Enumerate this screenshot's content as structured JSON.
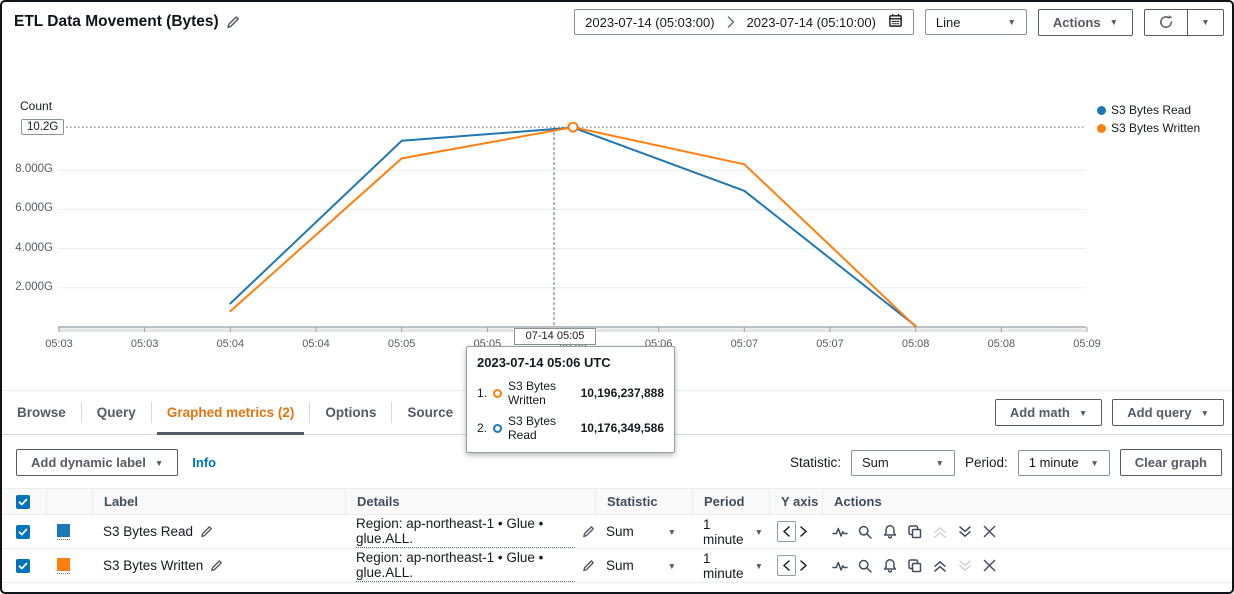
{
  "header": {
    "title": "ETL Data Movement (Bytes)",
    "date_range": {
      "start": "2023-07-14 (05:03:00)",
      "end": "2023-07-14 (05:10:00)"
    },
    "chart_type_select": "Line",
    "actions_button": "Actions"
  },
  "chart_data": {
    "type": "line",
    "title": "ETL Data Movement (Bytes)",
    "ylabel": "Count",
    "xlabel": "",
    "x_range": [
      "05:03",
      "05:09"
    ],
    "x_tick_labels": [
      "05:03",
      "05:03",
      "05:04",
      "05:04",
      "05:05",
      "05:05",
      "05:06",
      "05:06",
      "05:07",
      "05:07",
      "05:08",
      "05:08",
      "05:09"
    ],
    "y_tick_labels": [
      "8.000G",
      "6.000G",
      "4.000G",
      "2.000G"
    ],
    "y_grid_values_g": [
      8,
      6,
      4,
      2
    ],
    "y_max_g": 10.2,
    "y_max_label": "10.2G",
    "ylim": [
      0,
      10.45
    ],
    "grid": true,
    "legend_position": "right",
    "series": [
      {
        "name": "S3 Bytes Read",
        "color": "#1f77b4",
        "x_times": [
          "05:04",
          "05:05",
          "05:06",
          "05:07",
          "05:08"
        ],
        "values_g": [
          1.2,
          9.5,
          10.176,
          6.95,
          0.05
        ]
      },
      {
        "name": "S3 Bytes Written",
        "color": "#ff7f0e",
        "x_times": [
          "05:04",
          "05:05",
          "05:06",
          "05:07",
          "05:08"
        ],
        "values_g": [
          0.8,
          8.6,
          10.196,
          8.3,
          0.02
        ]
      }
    ],
    "hover": {
      "axis_label": "07-14 05:05",
      "ring_series": "S3 Bytes Written",
      "ring_x_time": "05:06"
    }
  },
  "legend": {
    "items": [
      {
        "label": "S3 Bytes Read",
        "color": "#1f77b4"
      },
      {
        "label": "S3 Bytes Written",
        "color": "#ff7f0e"
      }
    ]
  },
  "tooltip": {
    "title": "2023-07-14 05:06 UTC",
    "rows": [
      {
        "rank": "1.",
        "series": "S3 Bytes Written",
        "color": "#ff7f0e",
        "value": "10,196,237,888"
      },
      {
        "rank": "2.",
        "series": "S3 Bytes Read",
        "color": "#1f77b4",
        "value": "10,176,349,586"
      }
    ]
  },
  "tabs": {
    "items": [
      {
        "label": "Browse",
        "active": false
      },
      {
        "label": "Query",
        "active": false
      },
      {
        "label": "Graphed metrics (2)",
        "active": true
      },
      {
        "label": "Options",
        "active": false
      },
      {
        "label": "Source",
        "active": false
      }
    ]
  },
  "metrics_toolbar": {
    "add_math": "Add math",
    "add_query": "Add query"
  },
  "graphed_toolbar": {
    "add_dynamic_label": "Add dynamic label",
    "info_link": "Info",
    "statistic_label": "Statistic:",
    "statistic_value": "Sum",
    "period_label": "Period:",
    "period_value": "1 minute",
    "clear_graph": "Clear graph"
  },
  "table": {
    "header": {
      "label": "Label",
      "details": "Details",
      "statistic": "Statistic",
      "period": "Period",
      "y_axis": "Y axis",
      "actions": "Actions",
      "all_checked": true
    },
    "rows": [
      {
        "checked": true,
        "color": "#1f77b4",
        "label": "S3 Bytes Read",
        "details": "Region: ap-northeast-1 • Glue • glue.ALL.",
        "statistic": "Sum",
        "period": "1 minute",
        "move_up_enabled": false,
        "move_down_enabled": true
      },
      {
        "checked": true,
        "color": "#ff7f0e",
        "label": "S3 Bytes Written",
        "details": "Region: ap-northeast-1 • Glue • glue.ALL.",
        "statistic": "Sum",
        "period": "1 minute",
        "move_up_enabled": true,
        "move_down_enabled": false
      }
    ]
  },
  "colors": {
    "accent_orange": "#e07511",
    "link_blue": "#0073bb",
    "checkbox_blue": "#0073bb",
    "series_blue": "#1f77b4",
    "series_orange": "#ff7f0e"
  }
}
